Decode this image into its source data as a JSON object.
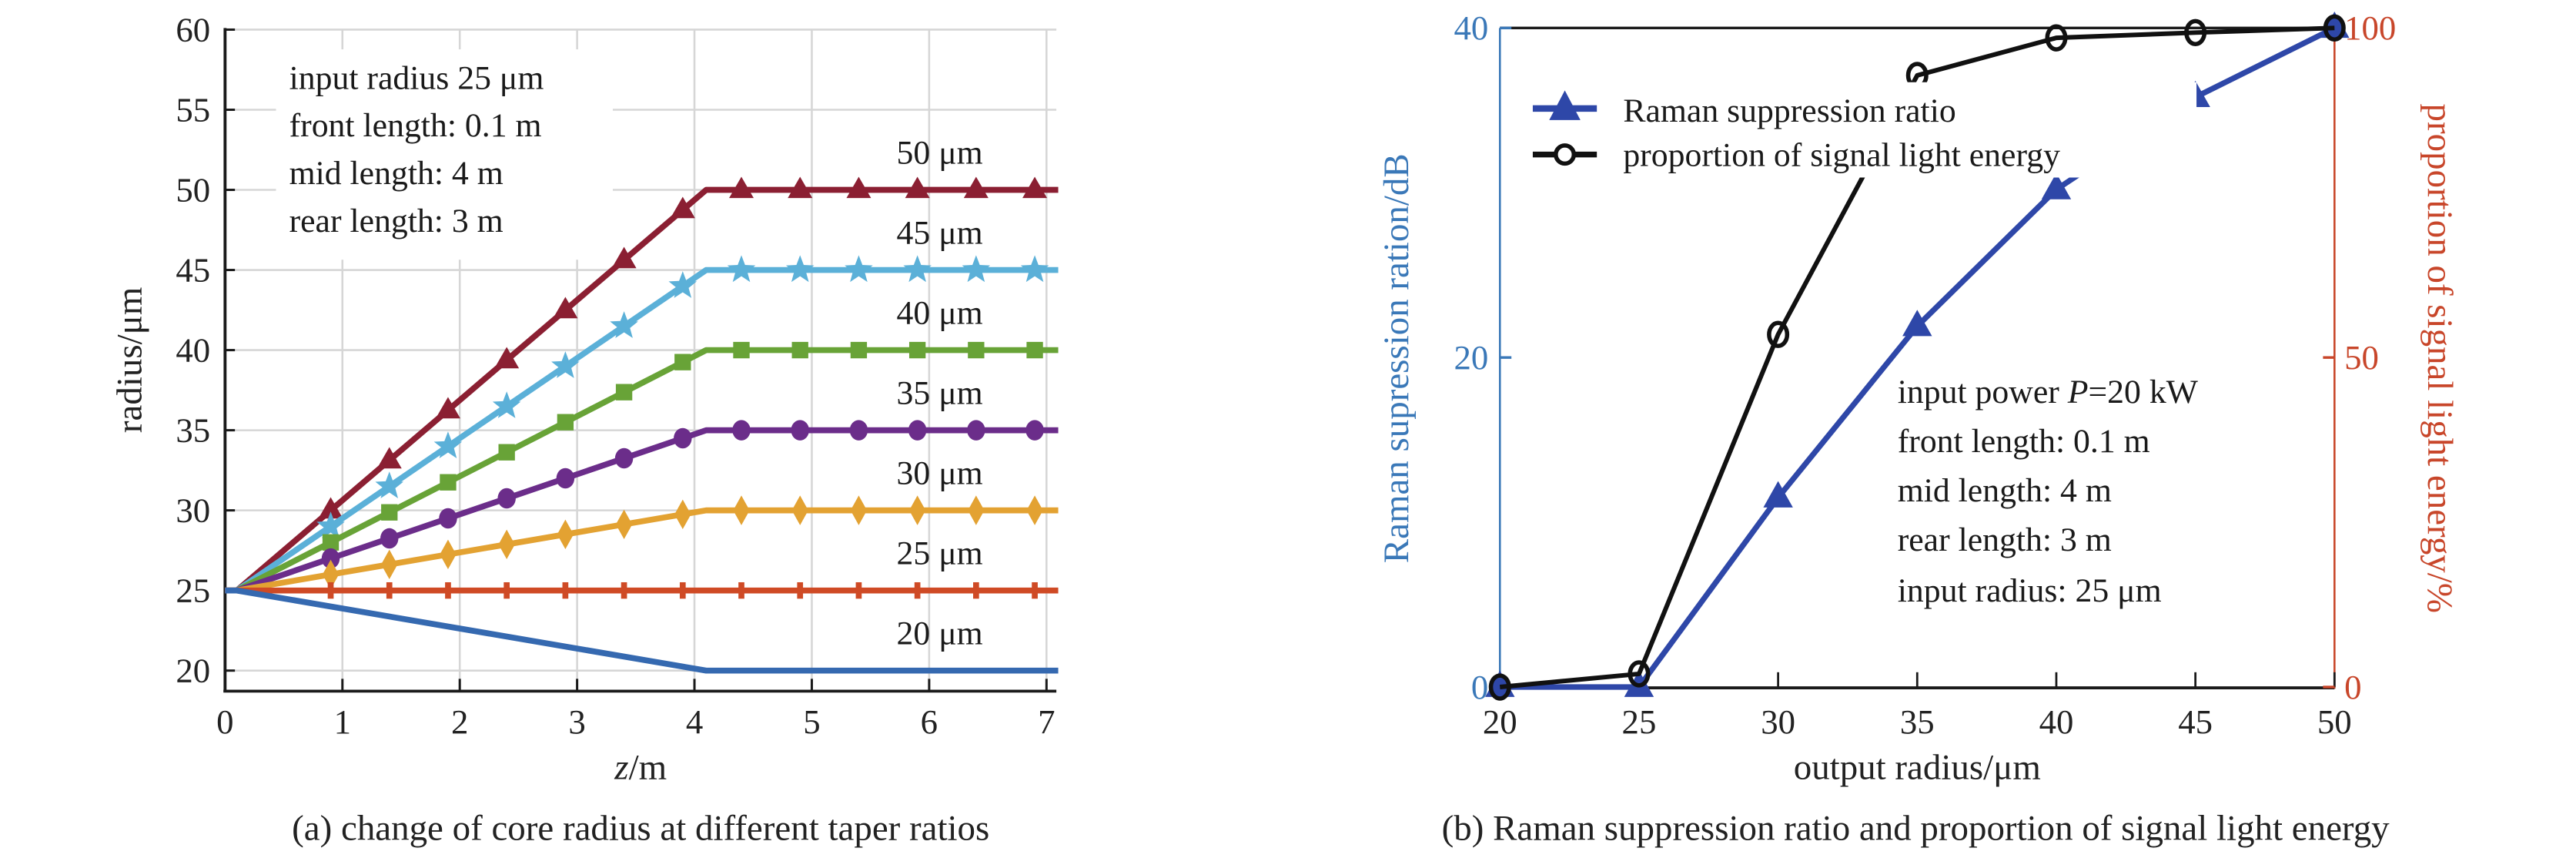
{
  "chart_data": [
    {
      "panel": "a",
      "type": "line",
      "caption": "(a) change of core radius at different taper ratios",
      "xlabel_italic": "z",
      "xlabel_rest": "/m",
      "ylabel": "radius/μm",
      "xlim": [
        0,
        7.1
      ],
      "ylim": [
        19,
        60
      ],
      "xticks": [
        "0",
        "1",
        "2",
        "3",
        "4",
        "5",
        "6",
        "7"
      ],
      "xtick_values": [
        0,
        1,
        2,
        3,
        4,
        5,
        6,
        7
      ],
      "yticks": [
        "20",
        "25",
        "30",
        "35",
        "40",
        "45",
        "50",
        "55",
        "60"
      ],
      "ytick_values": [
        20,
        25,
        30,
        35,
        40,
        45,
        50,
        55,
        60
      ],
      "grid": true,
      "annotation": [
        "input radius 25 μm",
        "front length: 0.1 m",
        "mid length: 4 m",
        "rear length: 3 m"
      ],
      "taper": {
        "input_radius": 25,
        "front_length": 0.1,
        "mid_length": 4,
        "rear_length": 3
      },
      "marker_z": [
        0.9,
        1.4,
        1.9,
        2.4,
        2.9,
        3.4,
        3.9,
        4.4,
        4.9,
        5.4,
        5.9,
        6.4,
        6.9
      ],
      "series": [
        {
          "name": "50 μm",
          "label": "50 μm",
          "output_radius": 50,
          "color": "#8B1F32",
          "marker": "triangle"
        },
        {
          "name": "45 μm",
          "label": "45 μm",
          "output_radius": 45,
          "color": "#5BB0D8",
          "marker": "star"
        },
        {
          "name": "40 μm",
          "label": "40 μm",
          "output_radius": 40,
          "color": "#68A337",
          "marker": "square"
        },
        {
          "name": "35 μm",
          "label": "35 μm",
          "output_radius": 35,
          "color": "#6B2D8A",
          "marker": "circle"
        },
        {
          "name": "30 μm",
          "label": "30 μm",
          "output_radius": 30,
          "color": "#E3A232",
          "marker": "diamond"
        },
        {
          "name": "25 μm",
          "label": "25 μm",
          "output_radius": 25,
          "color": "#CF4A25",
          "marker": "vtick"
        },
        {
          "name": "20 μm",
          "label": "20 μm",
          "output_radius": 20,
          "color": "#3569B0",
          "marker": "none"
        }
      ]
    },
    {
      "panel": "b",
      "type": "line",
      "caption": "(b) Raman suppression ratio and proportion of signal light energy",
      "xlabel": "output radius/μm",
      "ylabel_left": "Raman supression ration/dB",
      "ylabel_right": "proportion of signal light energy/%",
      "xlim": [
        20,
        50
      ],
      "ylim_left": [
        0,
        40
      ],
      "ylim_right": [
        0,
        100
      ],
      "xticks": [
        "20",
        "25",
        "30",
        "35",
        "40",
        "45",
        "50"
      ],
      "xtick_values": [
        20,
        25,
        30,
        35,
        40,
        45,
        50
      ],
      "yticks_left": [
        "0",
        "20",
        "40"
      ],
      "ytick_values_left": [
        0,
        20,
        40
      ],
      "yticks_right": [
        "0",
        "50",
        "100"
      ],
      "ytick_values_right": [
        0,
        50,
        100
      ],
      "left_axis_color": "#3A78B8",
      "right_axis_color": "#C8462A",
      "grid": false,
      "legend_position": "top-left",
      "annotation": [
        "input power ",
        "P",
        "=20 kW",
        "front length: 0.1 m",
        "mid length: 4 m",
        "rear length: 3 m",
        "input radius: 25 μm"
      ],
      "x": [
        20,
        25,
        30,
        35,
        40,
        45,
        50
      ],
      "series": [
        {
          "name": "Raman suppression ratio",
          "axis": "left",
          "color": "#2E47A8",
          "marker": "triangle",
          "values": [
            0,
            0,
            11.5,
            21.9,
            30.2,
            35.8,
            40
          ]
        },
        {
          "name": "proportion of signal light energy",
          "axis": "right",
          "color": "#111111",
          "marker": "open-circle",
          "values": [
            0,
            2,
            53.5,
            92.8,
            98.5,
            99.3,
            100
          ]
        }
      ]
    }
  ]
}
